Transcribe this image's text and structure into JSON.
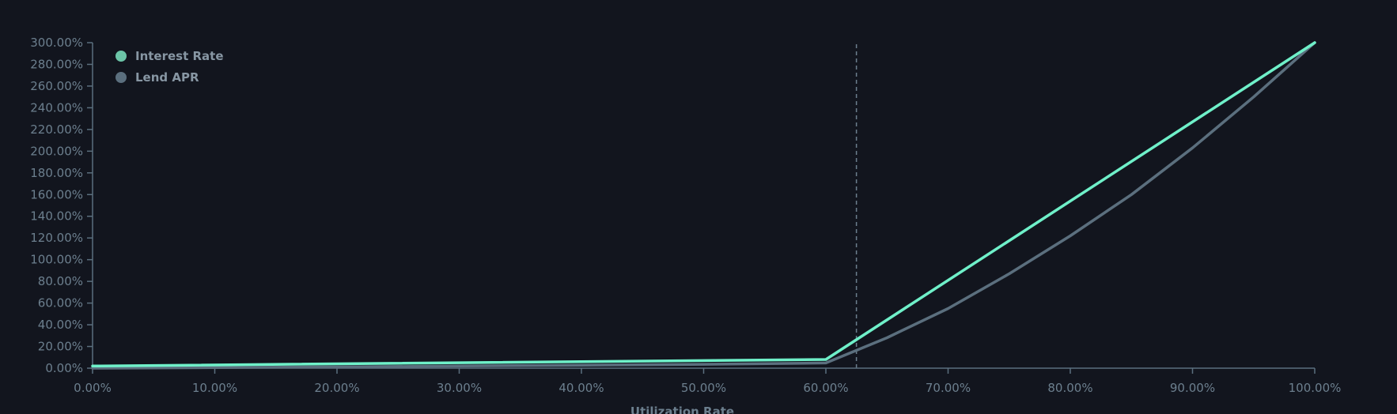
{
  "chart_data": {
    "type": "line",
    "xlabel": "Utilization Rate",
    "ylabel": "",
    "xlim": [
      0,
      100
    ],
    "ylim": [
      0,
      300
    ],
    "x_ticks": [
      "0.00%",
      "10.00%",
      "20.00%",
      "30.00%",
      "40.00%",
      "50.00%",
      "60.00%",
      "70.00%",
      "80.00%",
      "90.00%",
      "100.00%"
    ],
    "y_ticks": [
      "0.00%",
      "20.00%",
      "40.00%",
      "60.00%",
      "80.00%",
      "100.00%",
      "120.00%",
      "140.00%",
      "160.00%",
      "180.00%",
      "200.00%",
      "220.00%",
      "240.00%",
      "260.00%",
      "280.00%",
      "300.00%"
    ],
    "reference_line_x": 62.5,
    "legend_position": "top-left",
    "grid": false,
    "series": [
      {
        "name": "Interest Rate",
        "color": "#6ff0c9",
        "legend_color": "#6cc5a8",
        "points": [
          [
            0,
            2
          ],
          [
            60,
            8
          ],
          [
            100,
            300
          ]
        ]
      },
      {
        "name": "Lend APR",
        "color": "#5b6f7e",
        "legend_color": "#5b6f7e",
        "points": [
          [
            0,
            0
          ],
          [
            10,
            0.5
          ],
          [
            20,
            1.2
          ],
          [
            30,
            2
          ],
          [
            40,
            2.8
          ],
          [
            50,
            3.6
          ],
          [
            60,
            4.8
          ],
          [
            65,
            28
          ],
          [
            70,
            55
          ],
          [
            75,
            87
          ],
          [
            80,
            122
          ],
          [
            85,
            160
          ],
          [
            90,
            203
          ],
          [
            95,
            250
          ],
          [
            100,
            300
          ]
        ]
      }
    ]
  }
}
